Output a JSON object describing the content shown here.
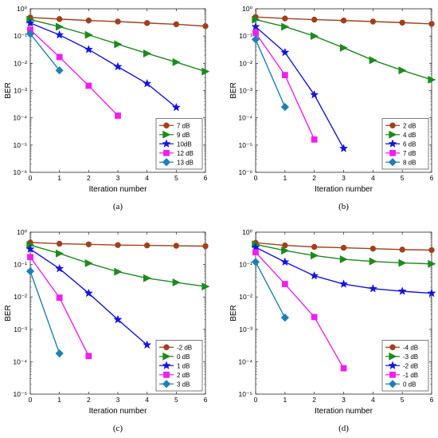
{
  "chart_data": [
    {
      "type": "line",
      "caption": "(a)",
      "xlabel": "Iteration number",
      "ylabel": "BER",
      "yscale": "log",
      "xlim": [
        0,
        6
      ],
      "ylim_exp": [
        -6,
        0
      ],
      "xticks": [
        "0",
        "1",
        "2",
        "3",
        "4",
        "5",
        "6"
      ],
      "yticks": [
        "10⁻⁶",
        "10⁻⁵",
        "10⁻⁴",
        "10⁻³",
        "10⁻²",
        "10⁻¹",
        "10⁰"
      ],
      "grid": false,
      "legend_position": "bottom-right",
      "series": [
        {
          "name": "7 dB",
          "color": "#A0401C",
          "marker": "circle",
          "x": [
            0,
            1,
            2,
            3,
            4,
            5,
            6
          ],
          "y": [
            0.48,
            0.42,
            0.37,
            0.34,
            0.3,
            0.27,
            0.23
          ]
        },
        {
          "name": "9 dB",
          "color": "#1E8A1E",
          "marker": "triangle-right",
          "x": [
            0,
            1,
            2,
            3,
            4,
            5,
            6
          ],
          "y": [
            0.4,
            0.22,
            0.11,
            0.05,
            0.023,
            0.011,
            0.005
          ]
        },
        {
          "name": "10dB",
          "color": "#1414E0",
          "marker": "star",
          "x": [
            0,
            1,
            2,
            3,
            4,
            5
          ],
          "y": [
            0.3,
            0.11,
            0.032,
            0.0075,
            0.0018,
            0.00024
          ]
        },
        {
          "name": "12 dB",
          "color": "#F01EF0",
          "marker": "square",
          "x": [
            0,
            1,
            2,
            3
          ],
          "y": [
            0.17,
            0.017,
            0.0015,
            0.00012
          ]
        },
        {
          "name": "13 dB",
          "color": "#1E80B4",
          "marker": "diamond",
          "x": [
            0,
            1
          ],
          "y": [
            0.12,
            0.0055
          ]
        }
      ]
    },
    {
      "type": "line",
      "caption": "(b)",
      "xlabel": "Iteration number",
      "ylabel": "BER",
      "yscale": "log",
      "xlim": [
        0,
        6
      ],
      "ylim_exp": [
        -6,
        0
      ],
      "xticks": [
        "0",
        "1",
        "2",
        "3",
        "4",
        "5",
        "6"
      ],
      "yticks": [
        "10⁻⁶",
        "10⁻⁵",
        "10⁻⁴",
        "10⁻³",
        "10⁻²",
        "10⁻¹",
        "10⁰"
      ],
      "grid": false,
      "legend_position": "bottom-right",
      "series": [
        {
          "name": "2 dB",
          "color": "#A0401C",
          "marker": "circle",
          "x": [
            0,
            1,
            2,
            3,
            4,
            5,
            6
          ],
          "y": [
            0.5,
            0.44,
            0.4,
            0.37,
            0.34,
            0.31,
            0.28
          ]
        },
        {
          "name": "4 dB",
          "color": "#1E8A1E",
          "marker": "triangle-right",
          "x": [
            0,
            1,
            2,
            3,
            4,
            5,
            6
          ],
          "y": [
            0.4,
            0.22,
            0.1,
            0.037,
            0.013,
            0.0055,
            0.0025
          ]
        },
        {
          "name": "6 dB",
          "color": "#1414E0",
          "marker": "star",
          "x": [
            0,
            1,
            2,
            3
          ],
          "y": [
            0.22,
            0.025,
            0.0007,
            7.5e-06
          ]
        },
        {
          "name": "7 dB",
          "color": "#F01EF0",
          "marker": "square",
          "x": [
            0,
            1,
            2
          ],
          "y": [
            0.13,
            0.0037,
            1.6e-05
          ]
        },
        {
          "name": "8 dB",
          "color": "#1E80B4",
          "marker": "diamond",
          "x": [
            0,
            1
          ],
          "y": [
            0.075,
            0.00025
          ]
        }
      ]
    },
    {
      "type": "line",
      "caption": "(c)",
      "xlabel": "Iteration number",
      "ylabel": "BER",
      "yscale": "log",
      "xlim": [
        0,
        6
      ],
      "ylim_exp": [
        -5,
        0
      ],
      "xticks": [
        "0",
        "1",
        "2",
        "3",
        "4",
        "5",
        "6"
      ],
      "yticks": [
        "10⁻⁵",
        "10⁻⁴",
        "10⁻³",
        "10⁻²",
        "10⁻¹",
        "10⁰"
      ],
      "grid": false,
      "legend_position": "bottom-right",
      "series": [
        {
          "name": "-2 dB",
          "color": "#A0401C",
          "marker": "circle",
          "x": [
            0,
            1,
            2,
            3,
            4,
            5,
            6
          ],
          "y": [
            0.48,
            0.44,
            0.42,
            0.4,
            0.39,
            0.38,
            0.37
          ]
        },
        {
          "name": "0 dB",
          "color": "#1E8A1E",
          "marker": "triangle-right",
          "x": [
            0,
            1,
            2,
            3,
            4,
            5,
            6
          ],
          "y": [
            0.4,
            0.22,
            0.11,
            0.06,
            0.038,
            0.028,
            0.021
          ]
        },
        {
          "name": "1 dB",
          "color": "#1414E0",
          "marker": "star",
          "x": [
            0,
            1,
            2,
            3,
            4
          ],
          "y": [
            0.3,
            0.075,
            0.013,
            0.002,
            0.00033
          ]
        },
        {
          "name": "2 dB",
          "color": "#F01EF0",
          "marker": "square",
          "x": [
            0,
            1,
            2
          ],
          "y": [
            0.17,
            0.0095,
            0.00015
          ]
        },
        {
          "name": "3 dB",
          "color": "#1E80B4",
          "marker": "diamond",
          "x": [
            0,
            1
          ],
          "y": [
            0.062,
            0.00018
          ]
        }
      ]
    },
    {
      "type": "line",
      "caption": "(d)",
      "xlabel": "Iteration number",
      "ylabel": "BER",
      "yscale": "log",
      "xlim": [
        0,
        6
      ],
      "ylim_exp": [
        -5,
        0
      ],
      "xticks": [
        "0",
        "1",
        "2",
        "3",
        "4",
        "5",
        "6"
      ],
      "yticks": [
        "10⁻⁵",
        "10⁻⁴",
        "10⁻³",
        "10⁻²",
        "10⁻¹",
        "10⁰"
      ],
      "grid": false,
      "legend_position": "bottom-right",
      "series": [
        {
          "name": "-4 dB",
          "color": "#A0401C",
          "marker": "circle",
          "x": [
            0,
            1,
            2,
            3,
            4,
            5,
            6
          ],
          "y": [
            0.47,
            0.39,
            0.35,
            0.33,
            0.31,
            0.29,
            0.28
          ]
        },
        {
          "name": "-3 dB",
          "color": "#1E8A1E",
          "marker": "triangle-right",
          "x": [
            0,
            1,
            2,
            3,
            4,
            5,
            6
          ],
          "y": [
            0.42,
            0.27,
            0.19,
            0.145,
            0.125,
            0.112,
            0.105
          ]
        },
        {
          "name": "-2 dB",
          "color": "#1414E0",
          "marker": "star",
          "x": [
            0,
            1,
            2,
            3,
            4,
            5,
            6
          ],
          "y": [
            0.34,
            0.12,
            0.045,
            0.025,
            0.018,
            0.015,
            0.013
          ]
        },
        {
          "name": "-1 dB",
          "color": "#F01EF0",
          "marker": "square",
          "x": [
            0,
            1,
            2,
            3
          ],
          "y": [
            0.24,
            0.025,
            0.0024,
            6.3e-05
          ]
        },
        {
          "name": "0 dB",
          "color": "#1E80B4",
          "marker": "diamond",
          "x": [
            0,
            1
          ],
          "y": [
            0.12,
            0.0023
          ]
        }
      ]
    }
  ]
}
